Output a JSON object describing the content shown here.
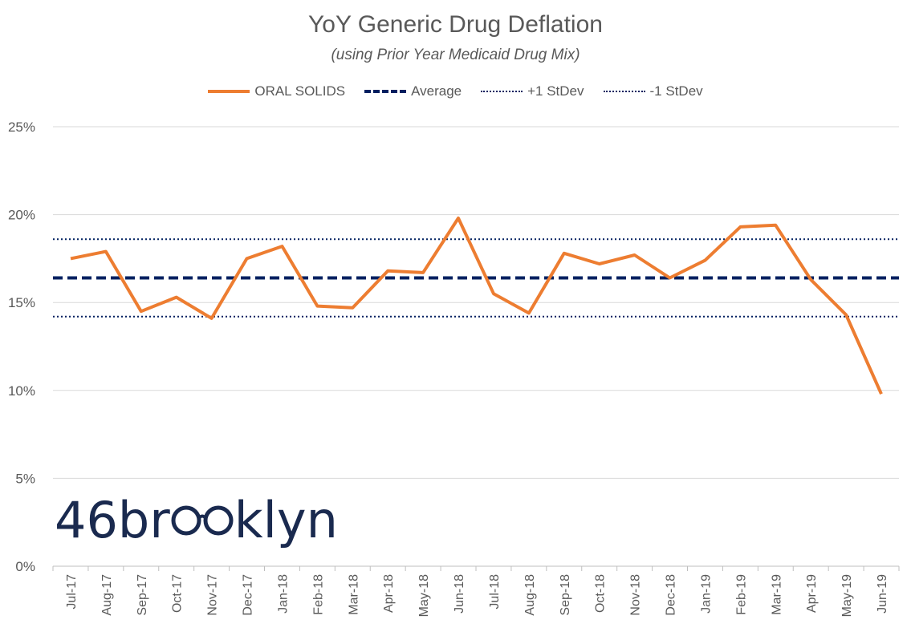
{
  "chart_data": {
    "type": "line",
    "title": "YoY Generic Drug Deflation",
    "subtitle": "(using Prior Year Medicaid Drug Mix)",
    "categories": [
      "Jul-17",
      "Aug-17",
      "Sep-17",
      "Oct-17",
      "Nov-17",
      "Dec-17",
      "Jan-18",
      "Feb-18",
      "Mar-18",
      "Apr-18",
      "May-18",
      "Jun-18",
      "Jul-18",
      "Aug-18",
      "Sep-18",
      "Oct-18",
      "Nov-18",
      "Dec-18",
      "Jan-19",
      "Feb-19",
      "Mar-19",
      "Apr-19",
      "May-19",
      "Jun-19"
    ],
    "series": [
      {
        "name": "ORAL SOLIDS",
        "style": "solid",
        "color": "#ED7D31",
        "values": [
          17.5,
          17.9,
          14.5,
          15.3,
          14.1,
          17.5,
          18.2,
          14.8,
          14.7,
          16.8,
          16.7,
          19.8,
          15.5,
          14.4,
          17.8,
          17.2,
          17.7,
          16.4,
          17.4,
          19.3,
          19.4,
          16.3,
          14.3,
          9.8
        ]
      },
      {
        "name": "Average",
        "style": "dashed",
        "color": "#002060",
        "values": [
          16.4,
          16.4,
          16.4,
          16.4,
          16.4,
          16.4,
          16.4,
          16.4,
          16.4,
          16.4,
          16.4,
          16.4,
          16.4,
          16.4,
          16.4,
          16.4,
          16.4,
          16.4,
          16.4,
          16.4,
          16.4,
          16.4,
          16.4,
          16.4
        ]
      },
      {
        "name": "+1 StDev",
        "style": "dotted",
        "color": "#002060",
        "values": [
          18.6,
          18.6,
          18.6,
          18.6,
          18.6,
          18.6,
          18.6,
          18.6,
          18.6,
          18.6,
          18.6,
          18.6,
          18.6,
          18.6,
          18.6,
          18.6,
          18.6,
          18.6,
          18.6,
          18.6,
          18.6,
          18.6,
          18.6,
          18.6
        ]
      },
      {
        "name": "-1 StDev",
        "style": "dotted",
        "color": "#002060",
        "values": [
          14.2,
          14.2,
          14.2,
          14.2,
          14.2,
          14.2,
          14.2,
          14.2,
          14.2,
          14.2,
          14.2,
          14.2,
          14.2,
          14.2,
          14.2,
          14.2,
          14.2,
          14.2,
          14.2,
          14.2,
          14.2,
          14.2,
          14.2,
          14.2
        ]
      }
    ],
    "yticks": [
      "0%",
      "5%",
      "10%",
      "15%",
      "20%",
      "25%"
    ],
    "ylim": [
      0,
      25
    ],
    "grid": true,
    "legend_position": "top"
  },
  "logo": {
    "text_before": "46br",
    "text_after": "klyn",
    "glyph": "eyeglasses-icon"
  }
}
